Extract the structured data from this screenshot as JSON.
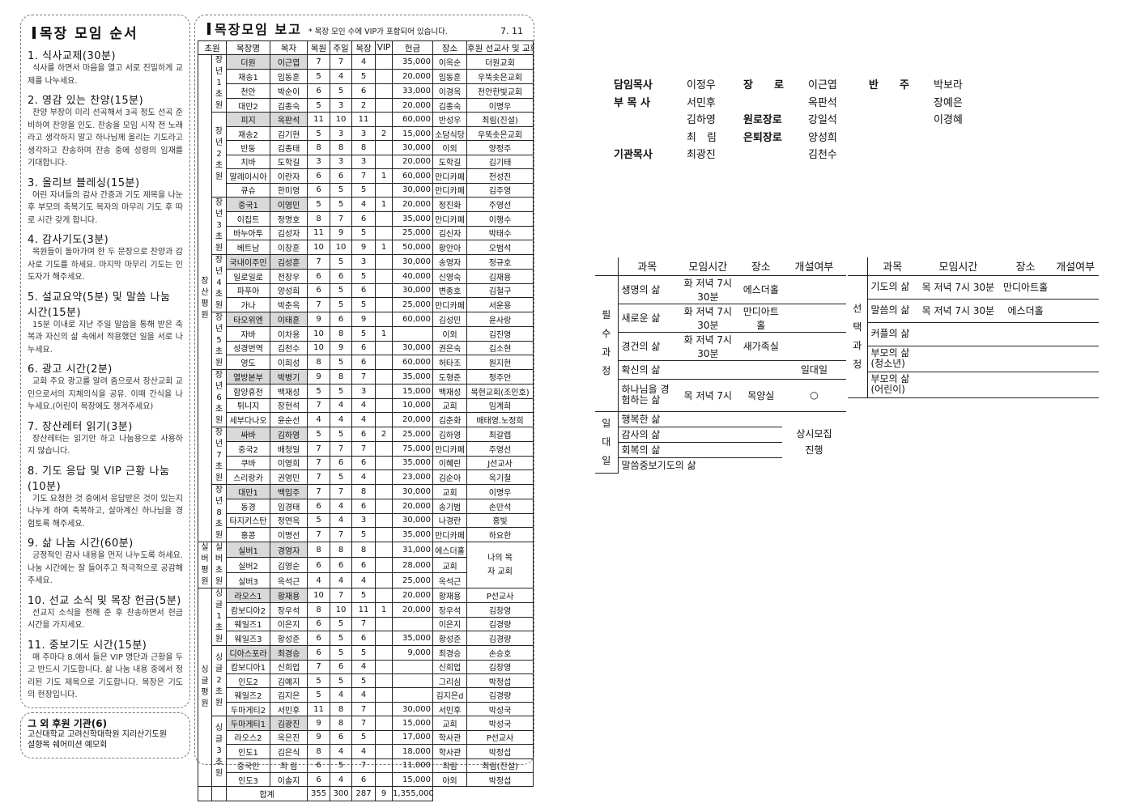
{
  "order": {
    "title": "목장 모임 순서",
    "items": [
      {
        "title": "1. 식사교제(30분)",
        "text": "식사를 하면서 마음을 열고 서로 친밀하게 교제를 나누세요."
      },
      {
        "title": "2. 영감 있는 찬양(15분)",
        "text": "찬양 부장이 미리 선곡해서 3곡 정도 선곡 준비하여 찬양을 인도. 찬송을 모임 시작 전 노래라고 생각하지 말고 하나님께 올리는 기도라고 생각하고 찬송하며 찬송 중에 성령의 임재를 기대합니다."
      },
      {
        "title": "3. 올리브 블레싱(15분)",
        "text": "어린 자녀들의 감사 간증과 기도 제목을 나눈 후 부모의 축복기도 목자의 마무리 기도 후 따로 시간 갖게 합니다."
      },
      {
        "title": "4. 감사기도(3분)",
        "text": "목원들이 돌아가며 한 두 문장으로 찬양과 감사로 기도를 하세요. 마지막 마무리 기도는 인도자가 해주세요."
      },
      {
        "title": "5. 설교요약(5분) 및 말씀 나눔 시간(15분)",
        "text": "15분 이내로 지난 주일 말씀을 통해 받은 축복과 자신의 삶 속에서 적용했던 일을 서로 나누세요."
      },
      {
        "title": "6. 광고 시간(2분)",
        "text": "교회 주요 광고를 알려 줌으로서 장산교회 교인으로서의 지체의식을 공유. 이때 간식을 나누세요.(어린이 목장에도 챙겨주세요)"
      },
      {
        "title": "7. 장산레터 읽기(3분)",
        "text": "장산레터는 읽기만 하고 나눔용으로 사용하지 않습니다."
      },
      {
        "title": "8. 기도 응답 및 VIP 근황 나눔(10분)",
        "text": "기도 요청한 것 중에서 응답받은 것이 있는지 나누게 하여 축복하고, 살아계신 하나님을 경험토록 해주세요."
      },
      {
        "title": "9. 삶 나눔 시간(60분)",
        "text": "긍정적인 감사 내용을 먼저 나누도록 하세요. 나눔 시간에는 잘 들어주고 적극적으로 공감해 주세요."
      },
      {
        "title": "10. 선교 소식 및 목장 헌금(5분)",
        "text": "선교지 소식을 전해 준 후 찬송하면서 헌금 시간을 가지세요."
      },
      {
        "title": "11. 중보기도 시간(15분)",
        "text": "매 주마다 8.에서 들은 VIP 명단과 근황을 두고 반드시 기도합니다. 삶 나눔 내용 중에서 정리된 기도 제목으로 기도합니다. 목장은 기도의 현장입니다."
      }
    ]
  },
  "support": {
    "title": "그 외 후원 기관(6)",
    "line1": "고신대학교 고려신학대학원 지리산기도원",
    "line2": "설향목 쉐어미션 예모회"
  },
  "report": {
    "title": "목장모임 보고",
    "note": "* 목장 모인 수에 VIP가 포함되어 있습니다.",
    "date": "7. 11",
    "headers": [
      "초원",
      "목장명",
      "목자",
      "목원",
      "주일",
      "목장",
      "VIP",
      "헌금",
      "장소",
      "후원 선교사 및 교회"
    ],
    "groups": [
      {
        "name": "장산평원",
        "subs": [
          {
            "name": "장년1초원",
            "rows": [
              [
                "더원",
                "이근엽",
                "7",
                "7",
                "4",
                "",
                "35,000",
                "이옥순",
                "더원교회"
              ],
              [
                "재송1",
                "임동훈",
                "5",
                "4",
                "5",
                "",
                "20,000",
                "임동훈",
                "우뚝솟은교회"
              ],
              [
                "천안",
                "박순이",
                "6",
                "5",
                "6",
                "",
                "33,000",
                "이경옥",
                "천안한빛교회"
              ],
              [
                "대만2",
                "김종숙",
                "5",
                "3",
                "2",
                "",
                "20,000",
                "김종숙",
                "이명우"
              ]
            ]
          },
          {
            "name": "장년2초원",
            "rows": [
              [
                "피지",
                "옥판석",
                "11",
                "10",
                "11",
                "",
                "60,000",
                "반성우",
                "최림(진설)"
              ],
              [
                "재송2",
                "김기현",
                "5",
                "3",
                "3",
                "2",
                "15,000",
                "소담식당",
                "우뚝솟은교회"
              ],
              [
                "반둥",
                "김종태",
                "8",
                "8",
                "8",
                "",
                "30,000",
                "이외",
                "양정주"
              ],
              [
                "치바",
                "도학길",
                "3",
                "3",
                "3",
                "",
                "20,000",
                "도학길",
                "김기태"
              ],
              [
                "말레이시아",
                "이란자",
                "6",
                "6",
                "7",
                "1",
                "60,000",
                "만디카페",
                "전성진"
              ],
              [
                "큐슈",
                "한미영",
                "6",
                "5",
                "5",
                "",
                "30,000",
                "만디카페",
                "김주영"
              ]
            ]
          },
          {
            "name": "장년3초원",
            "rows": [
              [
                "중국1",
                "이영민",
                "5",
                "5",
                "4",
                "1",
                "20,000",
                "정진화",
                "주영선"
              ],
              [
                "이집트",
                "정명호",
                "8",
                "7",
                "6",
                "",
                "35,000",
                "만디카페",
                "이행수"
              ],
              [
                "바누아투",
                "김성자",
                "11",
                "9",
                "5",
                "",
                "25,000",
                "김신자",
                "박태수"
              ],
              [
                "베트남",
                "이창훈",
                "10",
                "10",
                "9",
                "1",
                "50,000",
                "황안아",
                "오범석"
              ]
            ]
          },
          {
            "name": "장년4초원",
            "rows": [
              [
                "국내이주민",
                "김성훈",
                "7",
                "5",
                "3",
                "",
                "30,000",
                "송영자",
                "정규호"
              ],
              [
                "일로일로",
                "전창우",
                "6",
                "6",
                "5",
                "",
                "40,000",
                "신영숙",
                "김재용"
              ],
              [
                "파푸아",
                "양성희",
                "6",
                "5",
                "6",
                "",
                "30,000",
                "변종호",
                "김철구"
              ],
              [
                "가나",
                "박춘옥",
                "7",
                "5",
                "5",
                "",
                "25,000",
                "만디카페",
                "서운용"
              ]
            ]
          },
          {
            "name": "장년5초원",
            "rows": [
              [
                "타오위엔",
                "이태훈",
                "9",
                "6",
                "9",
                "",
                "60,000",
                "김성민",
                "윤사랑"
              ],
              [
                "자바",
                "이차용",
                "10",
                "8",
                "5",
                "1",
                "",
                "이외",
                "김진영"
              ],
              [
                "성경번역",
                "김천수",
                "10",
                "9",
                "6",
                "",
                "30,000",
                "권은숙",
                "김소현"
              ],
              [
                "영도",
                "이희성",
                "8",
                "5",
                "6",
                "",
                "60,000",
                "허타조",
                "원지현"
              ]
            ]
          },
          {
            "name": "장년6초원",
            "rows": [
              [
                "열방본부",
                "박병기",
                "9",
                "8",
                "7",
                "",
                "35,000",
                "도형준",
                "정주안"
              ],
              [
                "함양휴천",
                "백재성",
                "5",
                "5",
                "3",
                "",
                "15,000",
                "백재성",
                "목현교회(조인호)"
              ],
              [
                "튀니지",
                "장현석",
                "7",
                "4",
                "4",
                "",
                "10,000",
                "교회",
                "임계희"
              ],
              [
                "세부다나오",
                "윤순선",
                "4",
                "4",
                "4",
                "",
                "20,000",
                "김춘화",
                "배태영.노정희"
              ]
            ]
          },
          {
            "name": "장년7초원",
            "rows": [
              [
                "싸바",
                "김하영",
                "5",
                "5",
                "6",
                "2",
                "25,000",
                "김하영",
                "최갈렙"
              ],
              [
                "중국2",
                "배청일",
                "7",
                "7",
                "7",
                "",
                "75,000",
                "만디카페",
                "주영선"
              ],
              [
                "쿠바",
                "이영희",
                "7",
                "6",
                "6",
                "",
                "35,000",
                "이혜린",
                "J선교사"
              ],
              [
                "스리랑카",
                "권영민",
                "7",
                "5",
                "4",
                "",
                "23,000",
                "김순아",
                "옥기철"
              ]
            ]
          },
          {
            "name": "장년8초원",
            "rows": [
              [
                "대만1",
                "백임주",
                "7",
                "7",
                "8",
                "",
                "30,000",
                "교회",
                "이명우"
              ],
              [
                "동경",
                "임경태",
                "6",
                "4",
                "6",
                "",
                "20,000",
                "송기범",
                "손만석"
              ],
              [
                "타지키스탄",
                "정연옥",
                "5",
                "4",
                "3",
                "",
                "30,000",
                "나경란",
                "홍빛"
              ],
              [
                "홍콩",
                "이명선",
                "7",
                "7",
                "5",
                "",
                "35,000",
                "만디카페",
                "하요한"
              ]
            ]
          }
        ]
      },
      {
        "name": "실버평원",
        "subs": [
          {
            "name": "실버초원",
            "sponsor_merged": "나의 목자 교회",
            "rows": [
              [
                "실버1",
                "경영자",
                "8",
                "8",
                "8",
                "",
                "31,000",
                "에스더홀"
              ],
              [
                "실버2",
                "김영순",
                "6",
                "6",
                "6",
                "",
                "28,000",
                "교회"
              ],
              [
                "실버3",
                "옥석근",
                "4",
                "4",
                "4",
                "",
                "25,000",
                "옥석근"
              ]
            ]
          }
        ]
      },
      {
        "name": "싱글평원",
        "subs": [
          {
            "name": "싱글1초원",
            "rows": [
              [
                "라오스1",
                "황재용",
                "10",
                "7",
                "5",
                "",
                "20,000",
                "황재용",
                "P선교사"
              ],
              [
                "캄보디아2",
                "장우석",
                "8",
                "10",
                "11",
                "1",
                "20,000",
                "장우석",
                "김창영"
              ],
              [
                "웨일즈1",
                "이은지",
                "6",
                "5",
                "7",
                "",
                "",
                "이은지",
                "김경량"
              ],
              [
                "웨일즈3",
                "황성준",
                "6",
                "5",
                "6",
                "",
                "35,000",
                "황성준",
                "김경량"
              ]
            ]
          },
          {
            "name": "싱글2초원",
            "rows": [
              [
                "디아스포라",
                "최경승",
                "6",
                "5",
                "5",
                "",
                "9,000",
                "최경승",
                "손승호"
              ],
              [
                "캄보디아1",
                "신희업",
                "7",
                "6",
                "4",
                "",
                "",
                "신희업",
                "김창영"
              ],
              [
                "인도2",
                "김예지",
                "5",
                "5",
                "5",
                "",
                "",
                "그리심",
                "박정섭"
              ],
              [
                "웨일즈2",
                "김지은",
                "5",
                "4",
                "4",
                "",
                "",
                "김지은d",
                "김경량"
              ],
              [
                "두마게티2",
                "서민후",
                "11",
                "8",
                "7",
                "",
                "30,000",
                "서민후",
                "박성국"
              ]
            ]
          },
          {
            "name": "싱글3초원",
            "rows": [
              [
                "두마게티1",
                "김광진",
                "9",
                "8",
                "7",
                "",
                "15,000",
                "교회",
                "박성국"
              ],
              [
                "라오스2",
                "옥은진",
                "9",
                "6",
                "5",
                "",
                "17,000",
                "학사관",
                "P선교사"
              ],
              [
                "인도1",
                "김은식",
                "8",
                "4",
                "4",
                "",
                "18,000",
                "학사관",
                "박정섭"
              ],
              [
                "중국인",
                "최 림",
                "6",
                "5",
                "7",
                "",
                "11,000",
                "최림",
                "최림(진설)"
              ],
              [
                "인도3",
                "이솔지",
                "6",
                "4",
                "6",
                "",
                "15,000",
                "아외",
                "박정섭"
              ]
            ]
          }
        ]
      }
    ],
    "total": {
      "label": "합계",
      "members": "355",
      "sunday": "300",
      "mokjang": "287",
      "vip": "9",
      "offering": "1,355,000"
    }
  },
  "staff": {
    "rows": [
      [
        "담임목사",
        "이정우",
        "장　　로",
        "이근엽",
        "반　　주",
        "박보라"
      ],
      [
        "부 목 사",
        "서민후",
        "",
        "옥판석",
        "",
        "장예은"
      ],
      [
        "",
        "김하영",
        "원로장로",
        "강일석",
        "",
        "이경혜"
      ],
      [
        "",
        "최　림",
        "은퇴장로",
        "양성희",
        "",
        ""
      ],
      [
        "기관목사",
        "최광진",
        "",
        "김천수",
        "",
        ""
      ]
    ]
  },
  "courses_left": {
    "headers": [
      "과목",
      "모임시간",
      "장소",
      "개설여부"
    ],
    "required_label": "필수과정",
    "required": [
      [
        "생명의 삶",
        "화 저녁 7시 30분",
        "에스더홀",
        ""
      ],
      [
        "새로운 삶",
        "화 저녁 7시 30분",
        "만디아트홀",
        ""
      ],
      [
        "경건의 삶",
        "화 저녁 7시 30분",
        "새가족실",
        ""
      ],
      [
        "확신의 삶",
        "",
        "",
        "일대일"
      ],
      [
        "하나님을 경험하는 삶",
        "목 저녁 7시",
        "목양실",
        "○"
      ]
    ],
    "onetoone_label": "일대일",
    "onetoone": [
      "행복한 삶",
      "감사의 삶",
      "회복의 삶",
      "말씀중보기도의 삶"
    ],
    "onetoone_status": "상시모집 진행"
  },
  "courses_right": {
    "headers": [
      "과목",
      "모임시간",
      "장소",
      "개설여부"
    ],
    "label": "선택과정",
    "rows": [
      [
        "기도의 삶",
        "목 저녁 7시 30분",
        "만디아트홀",
        ""
      ],
      [
        "말씀의 삶",
        "목 저녁 7시 30분",
        "에스더홀",
        ""
      ],
      [
        "커플의 삶",
        "",
        "",
        ""
      ],
      [
        "부모의 삶 (청소년)",
        "",
        "",
        ""
      ],
      [
        "부모의 삶 (어린이)",
        "",
        "",
        ""
      ]
    ]
  },
  "colors": {
    "shade": "#d9d9d9",
    "border": "#222222"
  }
}
